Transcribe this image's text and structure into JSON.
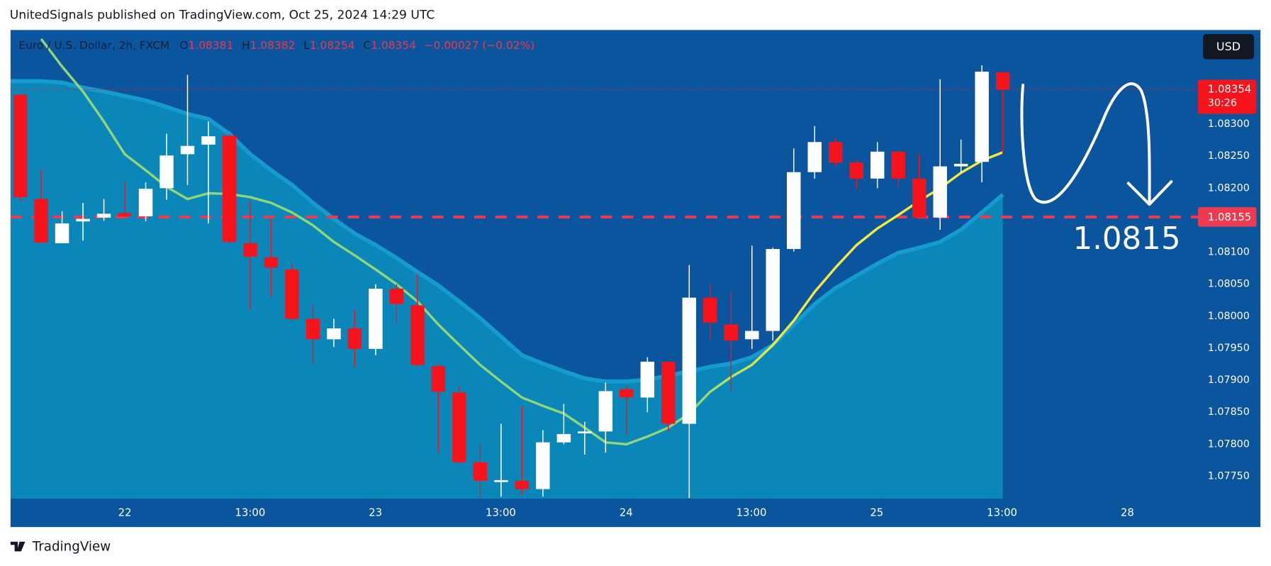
{
  "chart_data": {
    "type": "candlestick",
    "byline": "UnitedSignals published on TradingView.com, Oct 25, 2024 14:29 UTC",
    "title": "Euro / U.S. Dollar, 2h, FXCM",
    "ohlc_labels": [
      "O",
      "H",
      "L",
      "C"
    ],
    "change": "−0.00027 (−0.02%)",
    "currency": "USD",
    "brand": "TradingView",
    "annotation": "1.0815",
    "level": 1.08155,
    "last_price": 1.08354,
    "countdown": "30:26",
    "up_color": "#ffffff",
    "down_color": "#f5141c",
    "level_color": "#ee3a50",
    "ma_colors": [
      "#8fd67a",
      "#f3ea40"
    ],
    "band_color": "#0a86b8",
    "band_line_color": "#159bd0",
    "x_labels": [
      "22",
      "13:00",
      "23",
      "13:00",
      "24",
      "13:00",
      "25",
      "13:00",
      "28"
    ],
    "ylim": [
      1.07715,
      1.08447
    ],
    "yticks": [
      {
        "value": 1.0775,
        "label": "1.07750"
      },
      {
        "value": 1.078,
        "label": "1.07800"
      },
      {
        "value": 1.0785,
        "label": "1.07850"
      },
      {
        "value": 1.079,
        "label": "1.07900"
      },
      {
        "value": 1.0795,
        "label": "1.07950"
      },
      {
        "value": 1.08,
        "label": "1.08000"
      },
      {
        "value": 1.0805,
        "label": "1.08050"
      },
      {
        "value": 1.081,
        "label": "1.08100"
      },
      {
        "value": 1.0815,
        "label": "1.08150"
      },
      {
        "value": 1.082,
        "label": "1.08200"
      },
      {
        "value": 1.0825,
        "label": "1.08250"
      },
      {
        "value": 1.083,
        "label": "1.08300"
      }
    ],
    "candles": [
      {
        "open": 1.08346,
        "high": 1.08346,
        "low": 1.0818,
        "close": 1.08186
      },
      {
        "open": 1.08183,
        "high": 1.0823,
        "low": 1.08114,
        "close": 1.08115
      },
      {
        "open": 1.08114,
        "high": 1.08164,
        "low": 1.08114,
        "close": 1.08145
      },
      {
        "open": 1.08148,
        "high": 1.08177,
        "low": 1.08118,
        "close": 1.08152
      },
      {
        "open": 1.08154,
        "high": 1.08183,
        "low": 1.08149,
        "close": 1.0816
      },
      {
        "open": 1.08161,
        "high": 1.08209,
        "low": 1.08154,
        "close": 1.08156
      },
      {
        "open": 1.08156,
        "high": 1.08209,
        "low": 1.08148,
        "close": 1.08199
      },
      {
        "open": 1.082,
        "high": 1.08285,
        "low": 1.08182,
        "close": 1.08251
      },
      {
        "open": 1.08253,
        "high": 1.08377,
        "low": 1.08205,
        "close": 1.08266
      },
      {
        "open": 1.08268,
        "high": 1.08304,
        "low": 1.08145,
        "close": 1.08281
      },
      {
        "open": 1.08282,
        "high": 1.08284,
        "low": 1.08114,
        "close": 1.08116
      },
      {
        "open": 1.08114,
        "high": 1.0818,
        "low": 1.0801,
        "close": 1.08093
      },
      {
        "open": 1.08092,
        "high": 1.08152,
        "low": 1.08031,
        "close": 1.08076
      },
      {
        "open": 1.08073,
        "high": 1.08082,
        "low": 1.07993,
        "close": 1.07996
      },
      {
        "open": 1.07996,
        "high": 1.08019,
        "low": 1.07926,
        "close": 1.07964
      },
      {
        "open": 1.07964,
        "high": 1.07996,
        "low": 1.07952,
        "close": 1.07981
      },
      {
        "open": 1.07981,
        "high": 1.0801,
        "low": 1.0792,
        "close": 1.07949
      },
      {
        "open": 1.07949,
        "high": 1.0805,
        "low": 1.07939,
        "close": 1.08043
      },
      {
        "open": 1.08043,
        "high": 1.0805,
        "low": 1.0799,
        "close": 1.08019
      },
      {
        "open": 1.08017,
        "high": 1.08066,
        "low": 1.07921,
        "close": 1.07924
      },
      {
        "open": 1.07922,
        "high": 1.07925,
        "low": 1.07787,
        "close": 1.07882
      },
      {
        "open": 1.07881,
        "high": 1.07891,
        "low": 1.07769,
        "close": 1.07772
      },
      {
        "open": 1.07772,
        "high": 1.078,
        "low": 1.07717,
        "close": 1.07743
      },
      {
        "open": 1.07741,
        "high": 1.07832,
        "low": 1.07718,
        "close": 1.07744
      },
      {
        "open": 1.07743,
        "high": 1.0786,
        "low": 1.07721,
        "close": 1.0773
      },
      {
        "open": 1.0773,
        "high": 1.07822,
        "low": 1.07718,
        "close": 1.07803
      },
      {
        "open": 1.07803,
        "high": 1.07863,
        "low": 1.078,
        "close": 1.07816
      },
      {
        "open": 1.07817,
        "high": 1.07835,
        "low": 1.07784,
        "close": 1.0782
      },
      {
        "open": 1.0782,
        "high": 1.07896,
        "low": 1.07787,
        "close": 1.07883
      },
      {
        "open": 1.07886,
        "high": 1.07892,
        "low": 1.07814,
        "close": 1.07873
      },
      {
        "open": 1.07873,
        "high": 1.07936,
        "low": 1.0785,
        "close": 1.07929
      },
      {
        "open": 1.07929,
        "high": 1.07929,
        "low": 1.0782,
        "close": 1.07832
      },
      {
        "open": 1.07832,
        "high": 1.0808,
        "low": 1.07716,
        "close": 1.08029
      },
      {
        "open": 1.08029,
        "high": 1.0805,
        "low": 1.07962,
        "close": 1.0799
      },
      {
        "open": 1.07987,
        "high": 1.08038,
        "low": 1.07882,
        "close": 1.07962
      },
      {
        "open": 1.07964,
        "high": 1.0811,
        "low": 1.07949,
        "close": 1.07977
      },
      {
        "open": 1.07977,
        "high": 1.08107,
        "low": 1.07962,
        "close": 1.08105
      },
      {
        "open": 1.08105,
        "high": 1.08262,
        "low": 1.08101,
        "close": 1.08225
      },
      {
        "open": 1.08225,
        "high": 1.08297,
        "low": 1.08215,
        "close": 1.08272
      },
      {
        "open": 1.08272,
        "high": 1.08278,
        "low": 1.08234,
        "close": 1.0824
      },
      {
        "open": 1.0824,
        "high": 1.08244,
        "low": 1.08199,
        "close": 1.08215
      },
      {
        "open": 1.08215,
        "high": 1.08272,
        "low": 1.082,
        "close": 1.08257
      },
      {
        "open": 1.08257,
        "high": 1.08259,
        "low": 1.08202,
        "close": 1.08215
      },
      {
        "open": 1.08215,
        "high": 1.08253,
        "low": 1.08152,
        "close": 1.08154
      },
      {
        "open": 1.08154,
        "high": 1.0837,
        "low": 1.08135,
        "close": 1.08234
      },
      {
        "open": 1.08234,
        "high": 1.08276,
        "low": 1.08225,
        "close": 1.08238
      },
      {
        "open": 1.08241,
        "high": 1.08392,
        "low": 1.08209,
        "close": 1.08382
      },
      {
        "open": 1.08381,
        "high": 1.08382,
        "low": 1.08254,
        "close": 1.08354
      }
    ],
    "ma": [
      null,
      1.08433,
      1.0839,
      1.08351,
      1.08304,
      1.08253,
      1.08228,
      1.08202,
      1.08183,
      1.08192,
      1.08191,
      1.08186,
      1.08177,
      1.08162,
      1.08142,
      1.08116,
      1.08095,
      1.08073,
      1.0805,
      1.08023,
      1.07987,
      1.07955,
      1.07924,
      1.07898,
      1.07873,
      1.0786,
      1.07848,
      1.07826,
      1.07803,
      1.078,
      1.07812,
      1.07826,
      1.07848,
      1.07882,
      1.07905,
      1.07924,
      1.07955,
      1.07993,
      1.08038,
      1.08076,
      1.08111,
      1.08137,
      1.08158,
      1.0818,
      1.082,
      1.08224,
      1.08243,
      1.08256
    ],
    "band": [
      1.08367,
      1.08367,
      1.08365,
      1.08357,
      1.08351,
      1.08344,
      1.08337,
      1.08327,
      1.08316,
      1.08308,
      1.08285,
      1.08253,
      1.08228,
      1.08205,
      1.08177,
      1.08152,
      1.08129,
      1.08111,
      1.08091,
      1.08069,
      1.08048,
      1.08023,
      1.07997,
      1.07968,
      1.07939,
      1.07926,
      1.07914,
      1.07903,
      1.07898,
      1.07898,
      1.07901,
      1.07907,
      1.07914,
      1.07921,
      1.07926,
      1.07936,
      1.07955,
      1.07987,
      1.08019,
      1.08044,
      1.08063,
      1.08082,
      1.08099,
      1.08107,
      1.08116,
      1.08135,
      1.08162,
      1.0819
    ]
  }
}
